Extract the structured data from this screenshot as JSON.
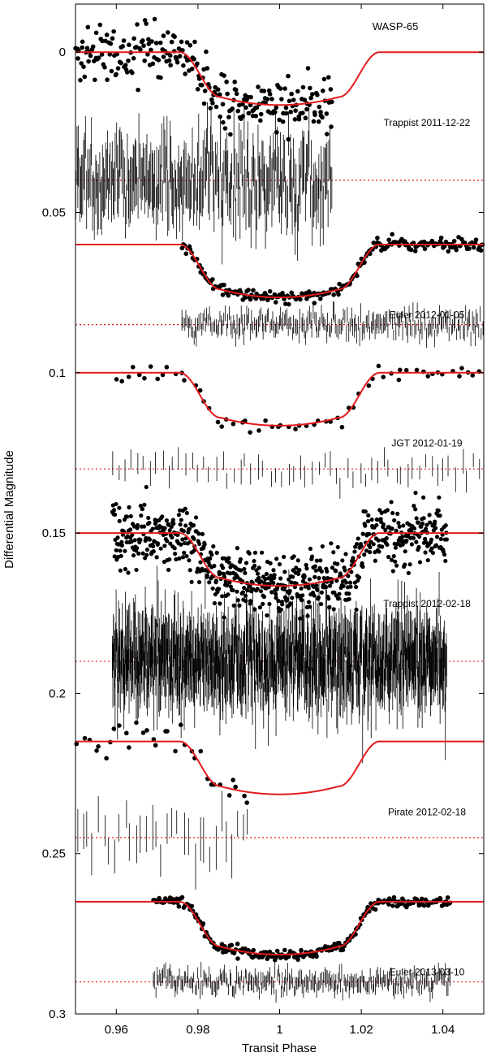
{
  "chart_data": {
    "type": "scatter",
    "title": "WASP-65",
    "xlabel": "Transit Phase",
    "ylabel": "Differential Magnitude",
    "xlim": [
      0.95,
      1.05
    ],
    "ylim": [
      0.3,
      -0.015
    ],
    "y_inverted": true,
    "x_ticks": [
      0.96,
      0.98,
      1,
      1.02,
      1.04
    ],
    "y_ticks": [
      0,
      0.05,
      0.1,
      0.15,
      0.2,
      0.25,
      0.3
    ],
    "model": {
      "ingress_start": 0.9755,
      "full_start": 0.9855,
      "full_end": 1.0145,
      "egress_end": 1.0245,
      "depth": 0.0165,
      "limb_curvature": 0.0025
    },
    "model_color": "#e41a1c",
    "residual_line_color": "#e41a1c",
    "point_color": "#000000",
    "series": [
      {
        "label": "Trappist 2011-12-22",
        "offset": 0.0,
        "x_range": [
          0.95,
          1.013
        ],
        "n": 260,
        "scatter": 0.0045,
        "residual_baseline": 0.04,
        "residual_scatter": 0.006
      },
      {
        "label": "Euler 2012-01-05",
        "offset": 0.06,
        "x_range": [
          0.976,
          1.05
        ],
        "n": 230,
        "scatter": 0.0009,
        "residual_baseline": 0.085,
        "residual_scatter": 0.0018
      },
      {
        "label": "JGT 2012-01-19",
        "offset": 0.1,
        "x_range": [
          0.959,
          1.05
        ],
        "n": 62,
        "scatter": 0.0013,
        "residual_baseline": 0.13,
        "residual_scatter": 0.0022
      },
      {
        "label": "Trappist 2012-02-18",
        "offset": 0.15,
        "x_range": [
          0.959,
          1.041
        ],
        "n": 700,
        "scatter": 0.005,
        "residual_baseline": 0.19,
        "residual_scatter": 0.0065
      },
      {
        "label": "Pirate 2012-02-18",
        "offset": 0.215,
        "x_range": [
          0.95,
          0.993
        ],
        "n": 33,
        "scatter": 0.003,
        "residual_baseline": 0.245,
        "residual_scatter": 0.004
      },
      {
        "label": "Euler 2013-03-10",
        "offset": 0.265,
        "x_range": [
          0.969,
          1.042
        ],
        "n": 250,
        "scatter": 0.0008,
        "residual_baseline": 0.29,
        "residual_scatter": 0.0016
      }
    ]
  }
}
